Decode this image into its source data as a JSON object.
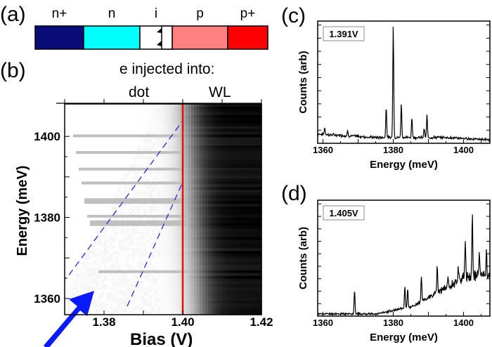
{
  "panel_a": {
    "label": "(a)",
    "layers": [
      {
        "name": "n+",
        "color": "#0a0a78"
      },
      {
        "name": "n",
        "color": "#00ffff"
      },
      {
        "name": "i",
        "color": "#ffffff"
      },
      {
        "name": "p",
        "color": "#ff8080"
      },
      {
        "name": "p+",
        "color": "#ff0000"
      }
    ]
  },
  "chart_data": [
    {
      "panel": "(b)",
      "type": "heatmap",
      "xlabel": "Bias (V)",
      "ylabel": "Energy (meV)",
      "xlim": [
        1.37,
        1.42
      ],
      "ylim": [
        1356,
        1408
      ],
      "xticks": [
        "1.38",
        "1.40",
        "1.42"
      ],
      "yticks": [
        "1360",
        "1380",
        "1400"
      ],
      "colormap": "white-to-black",
      "top_annotation": "e injected into:",
      "region_labels": [
        "dot",
        "WL"
      ],
      "vertical_line": {
        "x": 1.4,
        "color": "#e01010"
      },
      "dashed_lines": [
        {
          "from": [
            1.3711,
            1365.8
          ],
          "to": [
            1.3998,
            1403.6
          ],
          "color": "#2030d0"
        },
        {
          "from": [
            1.3859,
            1358.1
          ],
          "to": [
            1.3998,
            1388.3
          ],
          "color": "#2030d0"
        }
      ],
      "arrow_color": "#0a1aff"
    },
    {
      "panel": "(c)",
      "type": "line",
      "legend": "1.391V",
      "xlabel": "Energy (meV)",
      "ylabel": "Counts (arb)",
      "xlim": [
        1358.5,
        1407.5
      ],
      "ylim": [
        0,
        1.05
      ],
      "xticks": [
        "1360",
        "1380",
        "1400"
      ],
      "baseline": [
        [
          1358.5,
          0.08
        ],
        [
          1375,
          0.05
        ],
        [
          1395,
          0.05
        ],
        [
          1407.5,
          0.03
        ]
      ],
      "peaks": [
        [
          1360.5,
          0.06
        ],
        [
          1367,
          0.04
        ],
        [
          1378,
          0.27
        ],
        [
          1380,
          0.97
        ],
        [
          1382.3,
          0.29
        ],
        [
          1385.3,
          0.17
        ],
        [
          1388.8,
          0.08
        ],
        [
          1389.6,
          0.19
        ]
      ]
    },
    {
      "panel": "(d)",
      "type": "line",
      "legend": "1.405V",
      "xlabel": "Energy (meV)",
      "ylabel": "Counts (arb)",
      "xlim": [
        1358.5,
        1407.5
      ],
      "ylim": [
        0,
        1.05
      ],
      "xticks": [
        "1360",
        "1380",
        "1400"
      ],
      "baseline": [
        [
          1358.5,
          0.02
        ],
        [
          1375,
          0.02
        ],
        [
          1385,
          0.08
        ],
        [
          1392,
          0.2
        ],
        [
          1400,
          0.35
        ],
        [
          1407.5,
          0.38
        ]
      ],
      "peaks": [
        [
          1369,
          0.22
        ],
        [
          1383.3,
          0.2
        ],
        [
          1384.1,
          0.18
        ],
        [
          1388,
          0.22
        ],
        [
          1392.5,
          0.25
        ],
        [
          1395.5,
          0.08
        ],
        [
          1398.5,
          0.12
        ],
        [
          1400.5,
          0.3
        ],
        [
          1402.5,
          0.55
        ],
        [
          1404.5,
          0.2
        ],
        [
          1406.5,
          0.2
        ]
      ]
    }
  ]
}
